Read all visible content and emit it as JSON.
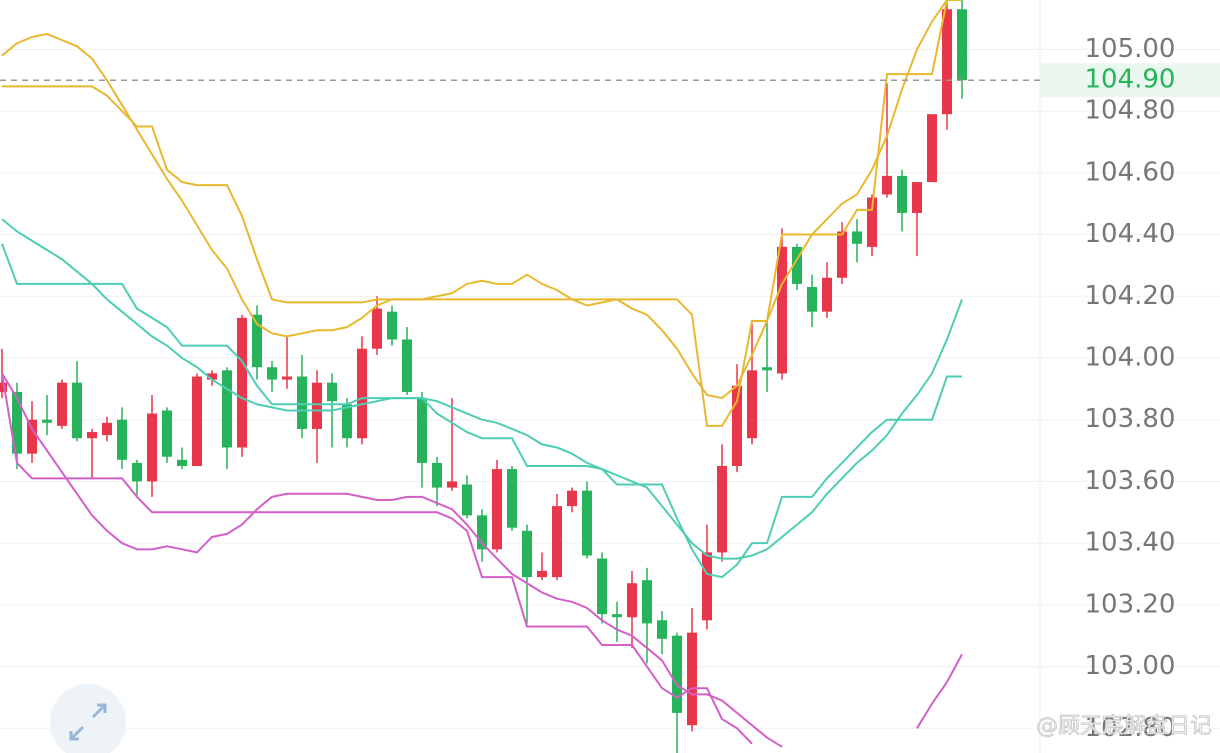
{
  "chart_data": {
    "type": "candlestick",
    "up_color": "#e8374a",
    "down_color": "#27b35a",
    "ylim": [
      102.72,
      105.16
    ],
    "yticks": [
      {
        "value": 105,
        "label": "105.00"
      },
      {
        "value": 104.8,
        "label": "104.80"
      },
      {
        "value": 104.6,
        "label": "104.60"
      },
      {
        "value": 104.4,
        "label": "104.40"
      },
      {
        "value": 104.2,
        "label": "104.20"
      },
      {
        "value": 104,
        "label": "104.00"
      },
      {
        "value": 103.8,
        "label": "103.80"
      },
      {
        "value": 103.6,
        "label": "103.60"
      },
      {
        "value": 103.4,
        "label": "103.40"
      },
      {
        "value": 103.2,
        "label": "103.20"
      },
      {
        "value": 103,
        "label": "103.00"
      },
      {
        "value": 102.8,
        "label": "102.80"
      }
    ],
    "grid": true,
    "last_price": {
      "value": 104.9,
      "label": "104.90"
    },
    "watermark": "@顾天宸解盘日记",
    "open": [
      103.89,
      103.89,
      103.69,
      103.8,
      103.78,
      103.92,
      103.74,
      103.75,
      103.8,
      103.66,
      103.6,
      103.83,
      103.67,
      103.65,
      103.93,
      103.96,
      103.71,
      104.14,
      103.97,
      103.93,
      103.94,
      103.77,
      103.92,
      103.85,
      103.74,
      104.03,
      104.15,
      104.06,
      103.87,
      103.66,
      103.58,
      103.59,
      103.49,
      103.38,
      103.64,
      103.44,
      103.29,
      103.29,
      103.52,
      103.57,
      103.35,
      103.17,
      103.16,
      103.28,
      103.15,
      103.1,
      102.81,
      103.15,
      103.37,
      103.65,
      103.74,
      103.97,
      103.95,
      104.36,
      104.23,
      104.15,
      104.26,
      104.41,
      104.36,
      104.53,
      104.59,
      104.47,
      104.57,
      104.79,
      105.13
    ],
    "high": [
      104.03,
      103.92,
      103.86,
      103.88,
      103.93,
      103.99,
      103.77,
      103.81,
      103.84,
      103.67,
      103.88,
      103.84,
      103.71,
      103.95,
      103.96,
      103.97,
      104.14,
      104.17,
      103.99,
      104.07,
      104.01,
      103.96,
      103.95,
      103.87,
      104.07,
      104.2,
      104.17,
      104.1,
      103.89,
      103.68,
      103.87,
      103.62,
      103.51,
      103.67,
      103.65,
      103.46,
      103.37,
      103.56,
      103.58,
      103.6,
      103.37,
      103.21,
      103.31,
      103.32,
      103.18,
      103.11,
      103.19,
      103.46,
      103.72,
      103.98,
      104.12,
      104.12,
      104.42,
      104.37,
      104.27,
      104.31,
      104.44,
      104.45,
      104.53,
      104.89,
      104.61,
      104.57,
      104.79,
      105.16,
      105.16
    ],
    "low": [
      103.87,
      103.64,
      103.66,
      103.75,
      103.77,
      103.73,
      103.61,
      103.73,
      103.64,
      103.55,
      103.55,
      103.66,
      103.64,
      103.65,
      103.91,
      103.64,
      103.68,
      103.93,
      103.89,
      103.9,
      103.74,
      103.66,
      103.71,
      103.71,
      103.72,
      104.01,
      104.04,
      103.88,
      103.58,
      103.52,
      103.57,
      103.48,
      103.34,
      103.37,
      103.44,
      103.14,
      103.28,
      103.28,
      103.5,
      103.35,
      103.14,
      103.08,
      103.06,
      103.01,
      103.04,
      102.72,
      102.79,
      103.12,
      103.34,
      103.63,
      103.72,
      103.89,
      103.93,
      104.22,
      104.1,
      104.13,
      104.24,
      104.31,
      104.33,
      104.52,
      104.41,
      104.33,
      104.57,
      104.74,
      104.84
    ],
    "close": [
      103.92,
      103.69,
      103.8,
      103.79,
      103.92,
      103.74,
      103.76,
      103.79,
      103.67,
      103.6,
      103.82,
      103.68,
      103.65,
      103.94,
      103.95,
      103.71,
      104.13,
      103.97,
      103.93,
      103.94,
      103.77,
      103.92,
      103.86,
      103.74,
      104.03,
      104.16,
      104.06,
      103.89,
      103.66,
      103.58,
      103.6,
      103.49,
      103.38,
      103.64,
      103.45,
      103.29,
      103.31,
      103.52,
      103.57,
      103.36,
      103.17,
      103.16,
      103.27,
      103.14,
      103.09,
      102.85,
      103.11,
      103.37,
      103.65,
      103.91,
      103.96,
      103.96,
      104.36,
      104.24,
      104.15,
      104.26,
      104.41,
      104.37,
      104.52,
      104.59,
      104.47,
      104.57,
      104.79,
      105.13,
      104.9
    ],
    "series": [
      {
        "color": "#d35fc8",
        "values": [
          103.95,
          103.66,
          103.61,
          103.61,
          103.61,
          103.61,
          103.61,
          103.61,
          103.61,
          103.55,
          103.5,
          103.5,
          103.5,
          103.5,
          103.5,
          103.5,
          103.5,
          103.5,
          103.5,
          103.5,
          103.5,
          103.5,
          103.5,
          103.5,
          103.5,
          103.5,
          103.5,
          103.5,
          103.5,
          103.5,
          103.48,
          103.44,
          103.29,
          103.29,
          103.29,
          103.13,
          103.13,
          103.13,
          103.13,
          103.13,
          103.07,
          103.07,
          103.07,
          103.0,
          102.93,
          102.9,
          102.93,
          102.93,
          102.83,
          102.8,
          102.75,
          null,
          null,
          null,
          null,
          null,
          null,
          null,
          null,
          null,
          null,
          null,
          null,
          null,
          null
        ]
      },
      {
        "color": "#d35fc8",
        "values": [
          103.95,
          103.87,
          103.77,
          103.7,
          103.63,
          103.56,
          103.49,
          103.44,
          103.4,
          103.38,
          103.38,
          103.39,
          103.38,
          103.37,
          103.42,
          103.43,
          103.46,
          103.51,
          103.55,
          103.56,
          103.56,
          103.56,
          103.56,
          103.56,
          103.55,
          103.54,
          103.54,
          103.55,
          103.55,
          103.53,
          103.51,
          103.46,
          103.4,
          103.35,
          103.3,
          103.27,
          103.24,
          103.22,
          103.21,
          103.19,
          103.15,
          103.12,
          103.1,
          103.06,
          103.02,
          102.94,
          102.91,
          102.91,
          102.89,
          102.85,
          102.81,
          102.77,
          102.74,
          null,
          null,
          null,
          null,
          null,
          null,
          null,
          null,
          102.8,
          102.88,
          102.95,
          103.04
        ]
      },
      {
        "color": "#4ecdb5",
        "values": [
          104.37,
          104.24,
          104.24,
          104.24,
          104.24,
          104.24,
          104.24,
          104.24,
          104.24,
          104.16,
          104.13,
          104.1,
          104.04,
          104.04,
          104.04,
          104.04,
          103.99,
          103.91,
          103.85,
          103.85,
          103.85,
          103.85,
          103.85,
          103.85,
          103.87,
          103.87,
          103.87,
          103.87,
          103.87,
          103.82,
          103.79,
          103.76,
          103.74,
          103.74,
          103.74,
          103.65,
          103.65,
          103.65,
          103.65,
          103.65,
          103.64,
          103.59,
          103.59,
          103.59,
          103.59,
          103.48,
          103.38,
          103.3,
          103.29,
          103.33,
          103.4,
          103.4,
          103.55,
          103.55,
          103.55,
          103.61,
          103.66,
          103.71,
          103.76,
          103.8,
          103.8,
          103.8,
          103.8,
          103.94,
          103.94
        ]
      },
      {
        "color": "#4ecdb5",
        "values": [
          104.45,
          104.41,
          104.38,
          104.35,
          104.32,
          104.28,
          104.24,
          104.19,
          104.15,
          104.11,
          104.07,
          104.04,
          104.0,
          103.97,
          103.93,
          103.9,
          103.87,
          103.85,
          103.84,
          103.83,
          103.83,
          103.83,
          103.83,
          103.84,
          103.85,
          103.86,
          103.87,
          103.87,
          103.87,
          103.86,
          103.84,
          103.82,
          103.8,
          103.79,
          103.77,
          103.75,
          103.72,
          103.71,
          103.69,
          103.66,
          103.64,
          103.62,
          103.6,
          103.58,
          103.52,
          103.46,
          103.4,
          103.36,
          103.35,
          103.35,
          103.36,
          103.38,
          103.42,
          103.46,
          103.5,
          103.56,
          103.61,
          103.66,
          103.7,
          103.75,
          103.82,
          103.88,
          103.95,
          104.06,
          104.19
        ]
      },
      {
        "color": "#e8b830",
        "values": [
          104.88,
          104.88,
          104.88,
          104.88,
          104.88,
          104.88,
          104.88,
          104.85,
          104.8,
          104.75,
          104.75,
          104.61,
          104.57,
          104.56,
          104.56,
          104.56,
          104.46,
          104.32,
          104.19,
          104.18,
          104.18,
          104.18,
          104.18,
          104.18,
          104.18,
          104.19,
          104.19,
          104.19,
          104.19,
          104.19,
          104.19,
          104.19,
          104.19,
          104.19,
          104.19,
          104.19,
          104.19,
          104.19,
          104.19,
          104.19,
          104.19,
          104.19,
          104.19,
          104.19,
          104.19,
          104.19,
          104.14,
          103.78,
          103.78,
          103.86,
          104.12,
          104.12,
          104.4,
          104.4,
          104.4,
          104.4,
          104.4,
          104.48,
          104.48,
          104.92,
          104.92,
          104.92,
          104.92,
          105.16,
          105.16
        ]
      },
      {
        "color": "#e8b830",
        "values": [
          104.98,
          105.02,
          105.04,
          105.05,
          105.03,
          105.01,
          104.97,
          104.9,
          104.82,
          104.74,
          104.66,
          104.58,
          104.51,
          104.43,
          104.35,
          104.29,
          104.19,
          104.11,
          104.08,
          104.07,
          104.08,
          104.09,
          104.09,
          104.1,
          104.13,
          104.17,
          104.19,
          104.19,
          104.19,
          104.2,
          104.21,
          104.24,
          104.25,
          104.24,
          104.24,
          104.27,
          104.24,
          104.22,
          104.19,
          104.17,
          104.18,
          104.19,
          104.16,
          104.14,
          104.09,
          104.03,
          103.95,
          103.88,
          103.87,
          103.91,
          104.01,
          104.12,
          104.24,
          104.32,
          104.4,
          104.45,
          104.5,
          104.53,
          104.61,
          104.72,
          104.87,
          105.0,
          105.09,
          105.16,
          null
        ]
      }
    ]
  }
}
